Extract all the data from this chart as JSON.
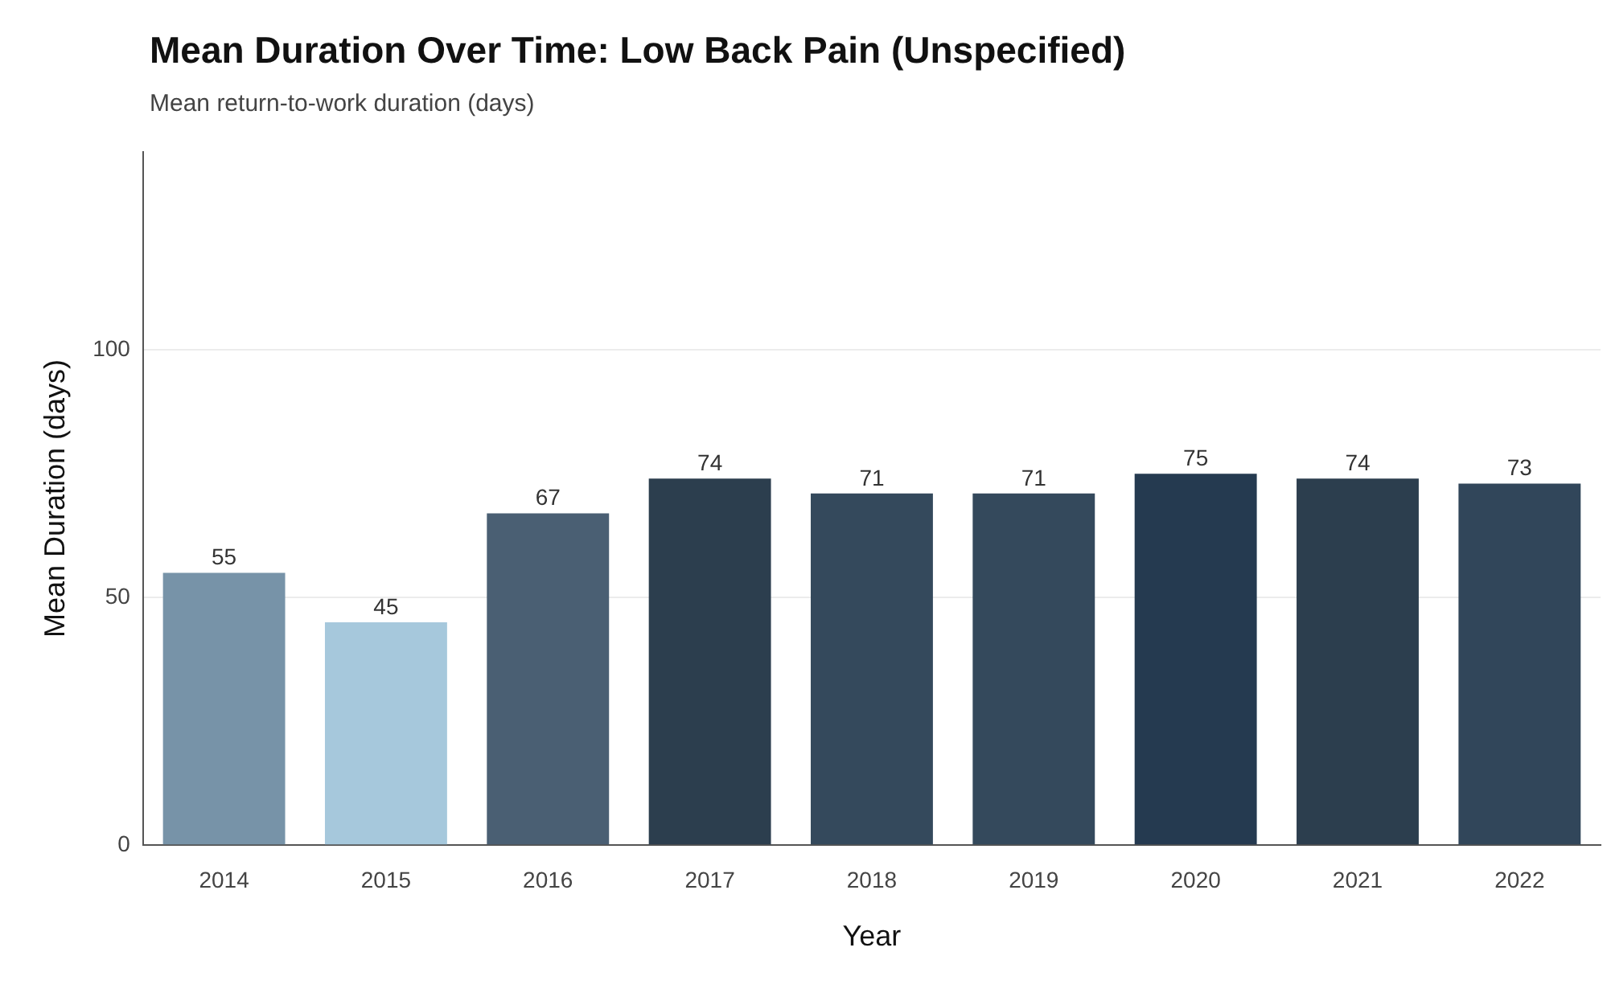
{
  "chart_data": {
    "type": "bar",
    "title": "Mean Duration Over Time: Low Back Pain (Unspecified)",
    "subtitle": "Mean return-to-work duration (days)",
    "xlabel": "Year",
    "ylabel": "Mean Duration (days)",
    "categories": [
      "2014",
      "2015",
      "2016",
      "2017",
      "2018",
      "2019",
      "2020",
      "2021",
      "2022"
    ],
    "values": [
      55,
      45,
      67,
      74,
      71,
      71,
      75,
      74,
      73
    ],
    "colors": [
      "#7793a8",
      "#a6c8dc",
      "#4a5f73",
      "#2c3e4e",
      "#34495c",
      "#34495c",
      "#253a50",
      "#2c3e4e",
      "#31465a"
    ],
    "ylim": [
      0,
      140
    ],
    "yticks": [
      0,
      50,
      100
    ],
    "grid": "y",
    "data_labels": true,
    "legend": false
  }
}
